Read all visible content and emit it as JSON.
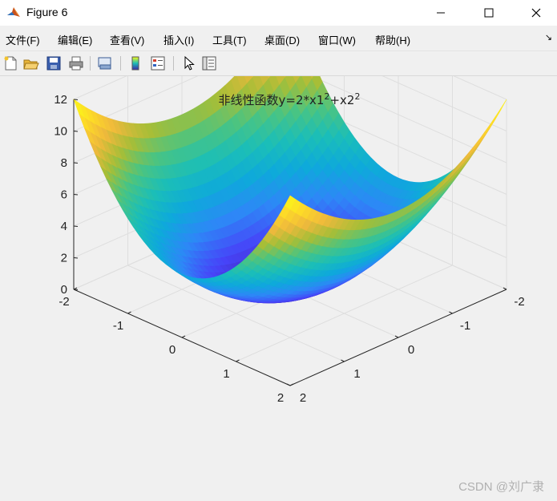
{
  "window": {
    "title": "Figure 6",
    "icons": {
      "app": "matlab-icon",
      "minimize": "minimize-icon",
      "maximize": "maximize-icon",
      "close": "close-icon"
    }
  },
  "menu": {
    "items": [
      {
        "label": "文件(F)"
      },
      {
        "label": "编辑(E)"
      },
      {
        "label": "查看(V)"
      },
      {
        "label": "插入(I)"
      },
      {
        "label": "工具(T)"
      },
      {
        "label": "桌面(D)"
      },
      {
        "label": "窗口(W)"
      },
      {
        "label": "帮助(H)"
      }
    ],
    "overflow_icon": "double-arrow-icon"
  },
  "toolbar": {
    "buttons": [
      "new-figure-icon",
      "open-file-icon",
      "save-icon",
      "print-icon",
      "link-plot-icon",
      "insert-colorbar-icon",
      "insert-legend-icon",
      "edit-plot-arrow-icon",
      "property-inspector-icon"
    ]
  },
  "colors": {
    "surface_colormap": [
      "#3e26a8",
      "#4743f8",
      "#2e87f7",
      "#0ea9db",
      "#1bbeb8",
      "#4ac482",
      "#a6be37",
      "#f0b93c",
      "#fddb27",
      "#f9fb15"
    ]
  },
  "chart_data": {
    "type": "surface",
    "title_parts": {
      "text": "非线性函数y=2*x1",
      "sup1": "2",
      "mid": "+x2",
      "sup2": "2"
    },
    "function": "y = 2*x1^2 + x2^2",
    "x1_range": [
      -2,
      2
    ],
    "x2_range": [
      -2,
      2
    ],
    "zlim": [
      0,
      12
    ],
    "z_ticks": [
      "0",
      "2",
      "4",
      "6",
      "8",
      "10",
      "12"
    ],
    "left_axis_ticks": [
      "2",
      "1",
      "0",
      "-1",
      "-2"
    ],
    "right_axis_ticks": [
      "-2",
      "-1",
      "0",
      "1",
      "2"
    ],
    "grid": true,
    "colormap": "parula"
  },
  "watermark": "CSDN @刘广隶"
}
